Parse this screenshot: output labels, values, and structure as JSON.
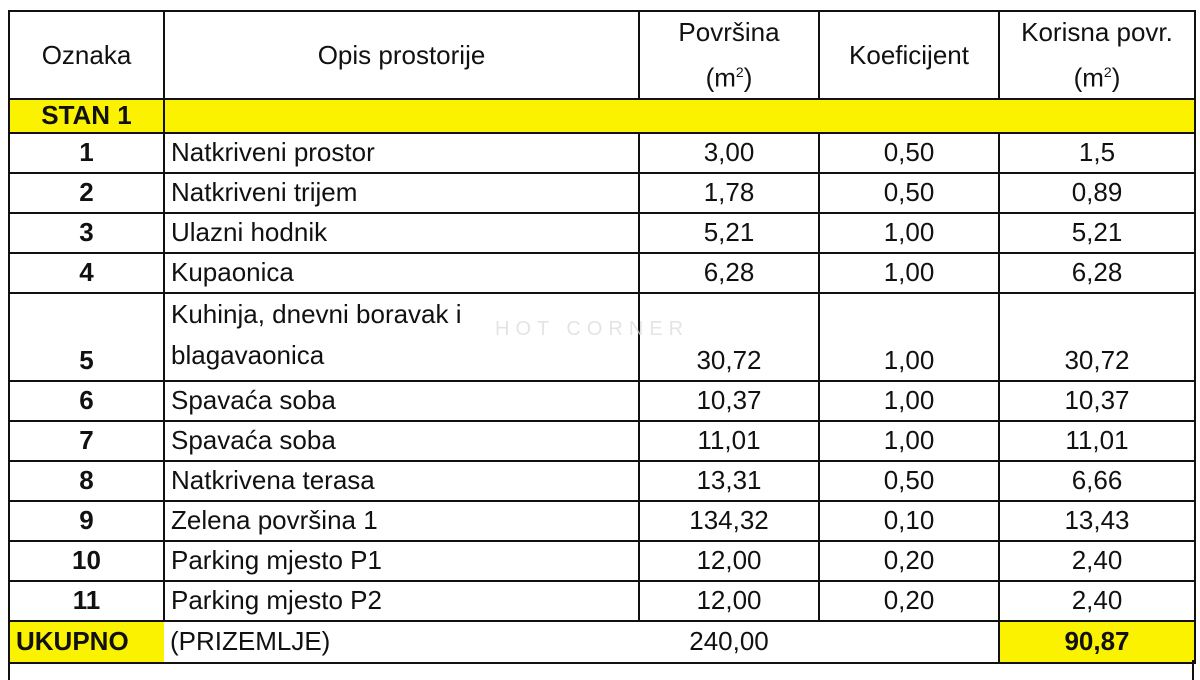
{
  "header": {
    "oznaka": "Oznaka",
    "opis": "Opis prostorije",
    "povrsina": "Površina",
    "povrsina_unit": "(m",
    "koeficijent": "Koeficijent",
    "korisna": "Korisna povr.",
    "korisna_unit": "(m",
    "unit_sup": "2",
    "unit_close": ")"
  },
  "section": {
    "label": "STAN 1"
  },
  "rows": [
    {
      "oznaka": "1",
      "opis": "Natkriveni prostor",
      "povrsina": "3,00",
      "koeficijent": "0,50",
      "korisna": "1,5"
    },
    {
      "oznaka": "2",
      "opis": "Natkriveni trijem",
      "povrsina": "1,78",
      "koeficijent": "0,50",
      "korisna": "0,89"
    },
    {
      "oznaka": "3",
      "opis": "Ulazni hodnik",
      "povrsina": "5,21",
      "koeficijent": "1,00",
      "korisna": "5,21"
    },
    {
      "oznaka": "4",
      "opis": "Kupaonica",
      "povrsina": "6,28",
      "koeficijent": "1,00",
      "korisna": "6,28"
    },
    {
      "oznaka": "5",
      "opis_line1": "Kuhinja, dnevni boravak i",
      "opis_line2": "blagavaonica",
      "povrsina": "30,72",
      "koeficijent": "1,00",
      "korisna": "30,72"
    },
    {
      "oznaka": "6",
      "opis": "Spavaća soba",
      "povrsina": "10,37",
      "koeficijent": "1,00",
      "korisna": "10,37"
    },
    {
      "oznaka": "7",
      "opis": "Spavaća soba",
      "povrsina": "11,01",
      "koeficijent": "1,00",
      "korisna": "11,01"
    },
    {
      "oznaka": "8",
      "opis": "Natkrivena terasa",
      "povrsina": "13,31",
      "koeficijent": "0,50",
      "korisna": "6,66"
    },
    {
      "oznaka": "9",
      "opis": "Zelena površina 1",
      "povrsina": "134,32",
      "koeficijent": "0,10",
      "korisna": "13,43"
    },
    {
      "oznaka": "10",
      "opis": "Parking mjesto P1",
      "povrsina": "12,00",
      "koeficijent": "0,20",
      "korisna": "2,40"
    },
    {
      "oznaka": "11",
      "opis": "Parking mjesto P2",
      "povrsina": "12,00",
      "koeficijent": "0,20",
      "korisna": "2,40"
    }
  ],
  "total": {
    "label": "UKUPNO",
    "note": "(PRIZEMLJE)",
    "povrsina": "240,00",
    "korisna": "90,87"
  },
  "watermark": "HOT CORNER",
  "colors": {
    "highlight": "#fbf200",
    "border": "#111111"
  }
}
